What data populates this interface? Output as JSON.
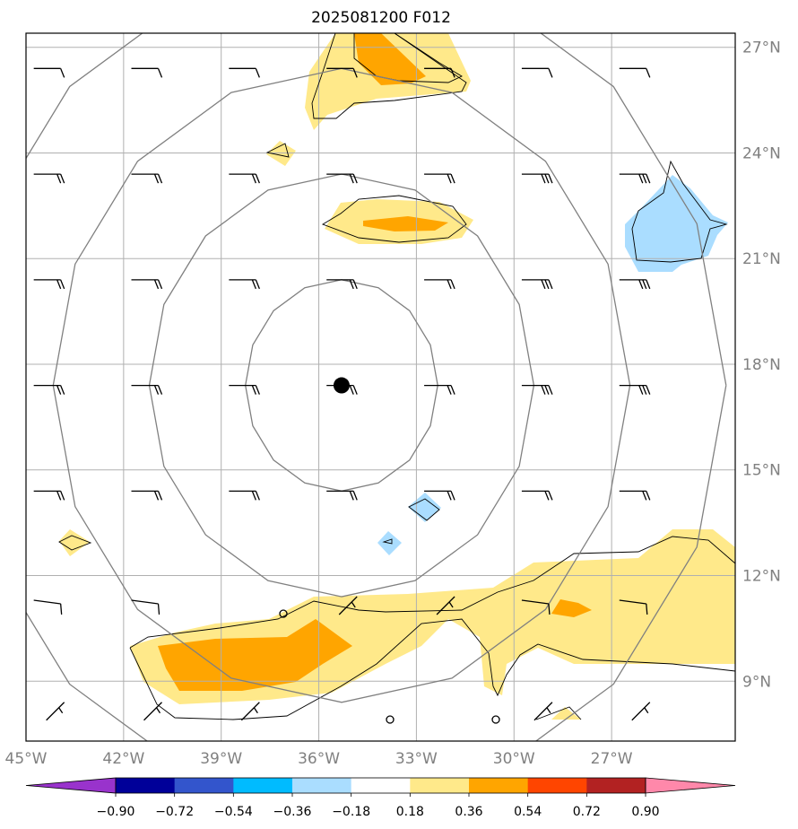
{
  "title": "2025081200 F012",
  "map": {
    "lon_range": [
      -45.0,
      -23.2
    ],
    "lat_range": [
      7.3,
      27.4
    ],
    "lon_ticks": [
      {
        "value": -45,
        "label": "45°W"
      },
      {
        "value": -42,
        "label": "42°W"
      },
      {
        "value": -39,
        "label": "39°W"
      },
      {
        "value": -36,
        "label": "36°W"
      },
      {
        "value": -33,
        "label": "33°W"
      },
      {
        "value": -30,
        "label": "30°W"
      },
      {
        "value": -27,
        "label": "27°W"
      }
    ],
    "lat_ticks": [
      {
        "value": 9,
        "label": "9°N"
      },
      {
        "value": 12,
        "label": "12°N"
      },
      {
        "value": 15,
        "label": "15°N"
      },
      {
        "value": 18,
        "label": "18°N"
      },
      {
        "value": 21,
        "label": "21°N"
      },
      {
        "value": 24,
        "label": "24°N"
      },
      {
        "value": 27,
        "label": "27°N"
      }
    ],
    "gridlines": true,
    "storm_center": {
      "lon": -35.3,
      "lat": 17.4
    },
    "range_rings_deg": [
      3,
      6,
      9,
      12
    ]
  },
  "colorbar": {
    "tick_labels": [
      "−0.90",
      "−0.72",
      "−0.54",
      "−0.36",
      "−0.18",
      "0.18",
      "0.36",
      "0.54",
      "0.72",
      "0.90"
    ],
    "colors": [
      "#9933cc",
      "#000099",
      "#3355cc",
      "#00bbff",
      "#aaddff",
      "#ffffff",
      "#ffe98a",
      "#ffa500",
      "#ff4500",
      "#b22222",
      "#ff88aa"
    ],
    "extend": "both"
  }
}
